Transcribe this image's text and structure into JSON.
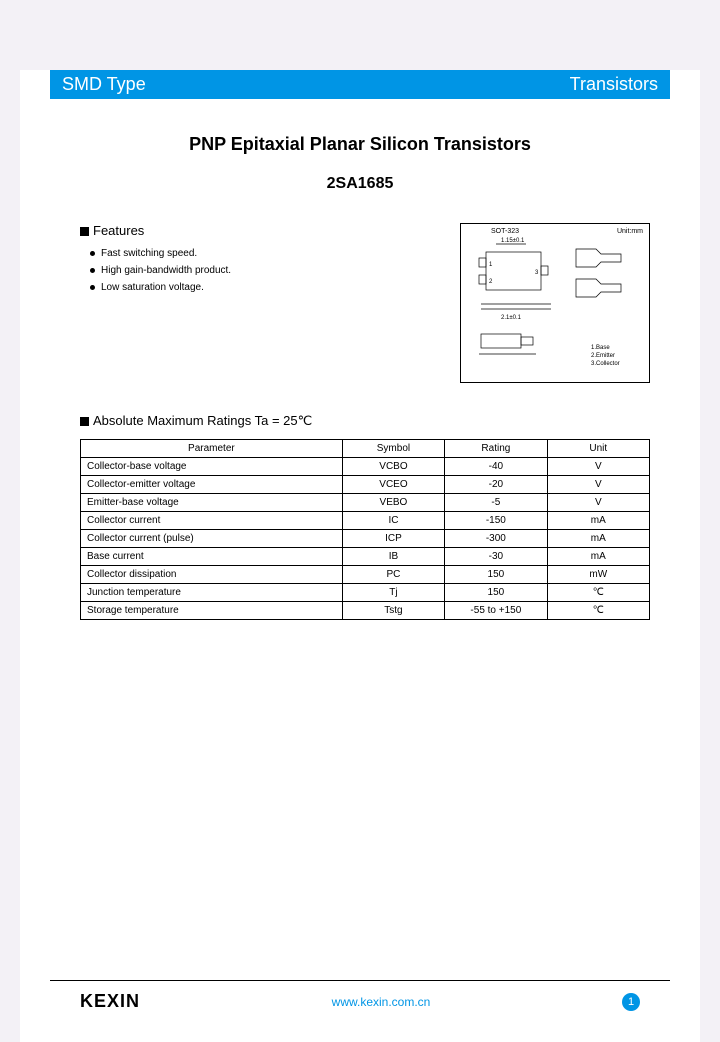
{
  "header": {
    "left": "SMD Type",
    "right": "Transistors"
  },
  "title": {
    "main": "PNP Epitaxial Planar Silicon Transistors",
    "part": "2SA1685"
  },
  "features": {
    "heading": "Features",
    "items": [
      "Fast switching speed.",
      "High gain-bandwidth product.",
      "Low saturation voltage."
    ]
  },
  "package": {
    "name": "SOT-323",
    "unit_note": "Unit:mm",
    "pins": [
      "1.Base",
      "2.Emitter",
      "3.Collector"
    ]
  },
  "ratings": {
    "heading": "Absolute Maximum Ratings Ta = 25℃",
    "columns": [
      "Parameter",
      "Symbol",
      "Rating",
      "Unit"
    ],
    "rows": [
      [
        "Collector-base voltage",
        "VCBO",
        "-40",
        "V"
      ],
      [
        "Collector-emitter voltage",
        "VCEO",
        "-20",
        "V"
      ],
      [
        "Emitter-base voltage",
        "VEBO",
        "-5",
        "V"
      ],
      [
        "Collector current",
        "IC",
        "-150",
        "mA"
      ],
      [
        "Collector current (pulse)",
        "ICP",
        "-300",
        "mA"
      ],
      [
        "Base current",
        "IB",
        "-30",
        "mA"
      ],
      [
        "Collector dissipation",
        "PC",
        "150",
        "mW"
      ],
      [
        "Junction temperature",
        "Tj",
        "150",
        "℃"
      ],
      [
        "Storage temperature",
        "Tstg",
        "-55 to +150",
        "℃"
      ]
    ]
  },
  "footer": {
    "logo": "KEXIN",
    "url": "www.kexin.com.cn",
    "page": "1"
  },
  "colors": {
    "accent": "#0095e5",
    "page_bg": "#f3f1f6",
    "text": "#000000"
  }
}
